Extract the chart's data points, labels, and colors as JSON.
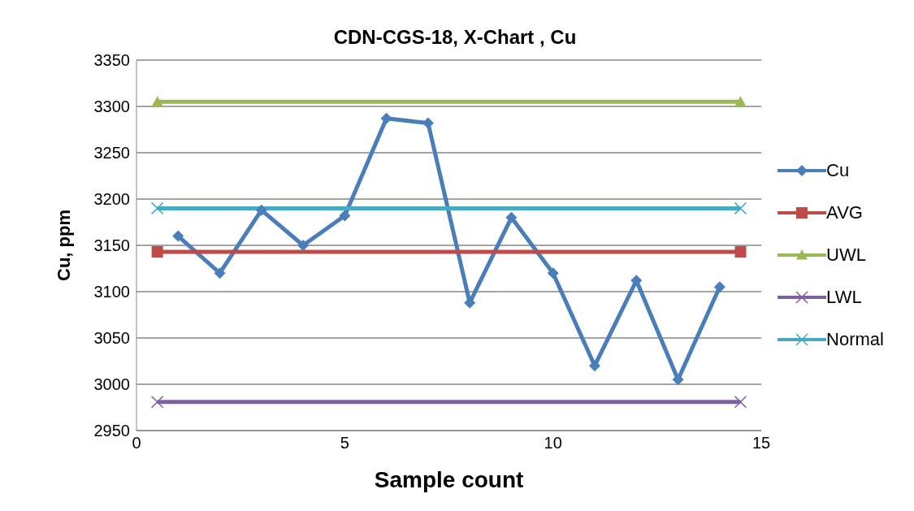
{
  "chart_data": {
    "type": "line",
    "title": "CDN-CGS-18, X-Chart , Cu",
    "xlabel": "Sample count",
    "ylabel": "Cu, ppm",
    "xlim": [
      0,
      15
    ],
    "xticks": [
      0,
      5,
      10,
      15
    ],
    "ylim": [
      2950,
      3350
    ],
    "yticks": [
      2950,
      3000,
      3050,
      3100,
      3150,
      3200,
      3250,
      3300,
      3350
    ],
    "grid": "y",
    "legend": "right",
    "line_style": "solid",
    "series": [
      {
        "name": "Cu",
        "color": "#4a7ebb",
        "marker": "diamond",
        "x": [
          1,
          2,
          3,
          4,
          5,
          6,
          7,
          8,
          9,
          10,
          11,
          12,
          13,
          14
        ],
        "values": [
          3160,
          3120,
          3188,
          3150,
          3182,
          3287,
          3282,
          3088,
          3180,
          3120,
          3020,
          3112,
          3005,
          3105
        ]
      },
      {
        "name": "AVG",
        "color": "#be4b48",
        "marker": "square",
        "x": [
          0.5,
          14.5
        ],
        "values": [
          3143,
          3143
        ]
      },
      {
        "name": "UWL",
        "color": "#98b954",
        "marker": "triangle",
        "x": [
          0.5,
          14.5
        ],
        "values": [
          3305,
          3305
        ]
      },
      {
        "name": "LWL",
        "color": "#7d60a0",
        "marker": "cross",
        "x": [
          0.5,
          14.5
        ],
        "values": [
          2981,
          2981
        ]
      },
      {
        "name": "Normal",
        "color": "#46aac5",
        "marker": "cross",
        "x": [
          0.5,
          14.5
        ],
        "values": [
          3190,
          3190
        ]
      }
    ]
  }
}
